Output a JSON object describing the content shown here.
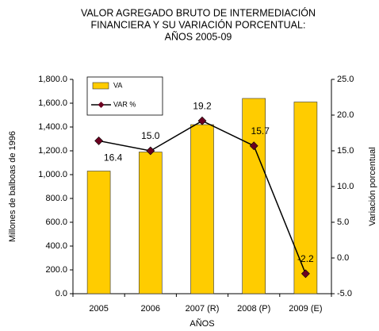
{
  "chart_data": {
    "type": "bar",
    "title": [
      "VALOR AGREGADO BRUTO DE INTERMEDIACIÓN",
      "FINANCIERA Y SU VARIACIÓN PORCENTUAL:",
      "AÑOS 2005-09"
    ],
    "x_label": "AÑOS",
    "y_label": "Millones de balboas de 1996",
    "y2_label": "Variación porcentual",
    "categories": [
      "2005",
      "2006",
      "2007 (R)",
      "2008 (P)",
      "2009 (E)"
    ],
    "series": [
      {
        "name": "VA",
        "type": "bar",
        "color": "#ffcc00",
        "values": [
          1030,
          1190,
          1420,
          1640,
          1610
        ]
      },
      {
        "name": "VAR %",
        "type": "line",
        "axis": "y2",
        "color": "#000000",
        "marker_color": "#6b0020",
        "values": [
          16.4,
          15.0,
          19.2,
          15.7,
          -2.2
        ],
        "value_labels": [
          "16.4",
          "15.0",
          "19.2",
          "15.7",
          "-2.2"
        ]
      }
    ],
    "ylim": [
      0,
      1800
    ],
    "yticks": [
      {
        "value": 0,
        "label": "0.0"
      },
      {
        "value": 200,
        "label": "200.0"
      },
      {
        "value": 400,
        "label": "400.0"
      },
      {
        "value": 600,
        "label": "600.0"
      },
      {
        "value": 800,
        "label": "800.0"
      },
      {
        "value": 1000,
        "label": "1,000.0"
      },
      {
        "value": 1200,
        "label": "1,200.0"
      },
      {
        "value": 1400,
        "label": "1,400.0"
      },
      {
        "value": 1600,
        "label": "1,600.0"
      },
      {
        "value": 1800,
        "label": "1,800.0"
      }
    ],
    "y2lim": [
      -5,
      25
    ],
    "y2ticks": [
      {
        "value": -5,
        "label": "-5.0"
      },
      {
        "value": 0,
        "label": "0.0"
      },
      {
        "value": 5,
        "label": "5.0"
      },
      {
        "value": 10,
        "label": "10.0"
      },
      {
        "value": 15,
        "label": "15.0"
      },
      {
        "value": 20,
        "label": "20.0"
      },
      {
        "value": 25,
        "label": "25.0"
      }
    ],
    "legend": "upper left"
  }
}
